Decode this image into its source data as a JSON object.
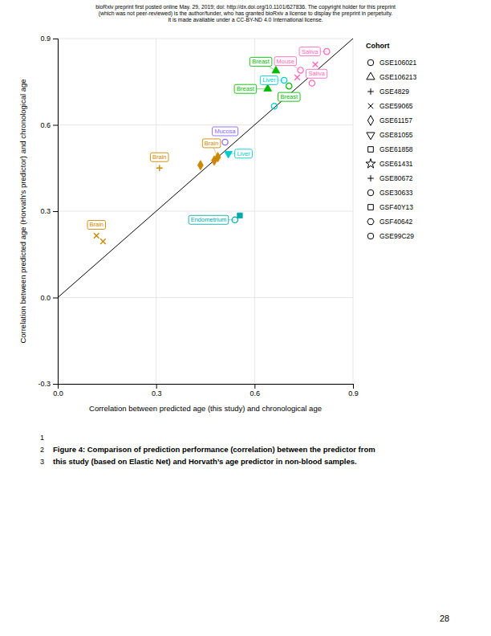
{
  "header_lines": [
    "bioRxiv preprint first posted online May. 29, 2019; doi: http://dx.doi.org/10.1101/627836. The copyright holder for this preprint",
    "(which was not peer-reviewed) is the author/funder, who has granted bioRxiv a license to display the preprint in perpetuity.",
    "It is made available under a CC-BY-ND 4.0 International license."
  ],
  "line_numbers": [
    "1",
    "2",
    "3"
  ],
  "caption_lines": [
    "Figure 4: Comparison of prediction performance (correlation) between the predictor from",
    "this study (based on Elastic Net) and Horvath’s age predictor in non-blood samples."
  ],
  "page_number": "28",
  "chart_data": {
    "type": "scatter",
    "xlabel": "Correlation between predicted age (this study) and chronological age",
    "ylabel": "Correlation between predicted age (Horvath's predictor) and chronological age",
    "xlim": [
      0,
      0.9
    ],
    "ylim": [
      -0.3,
      0.9
    ],
    "xticks": [
      {
        "value": 0,
        "label": "0.0"
      },
      0.3,
      0.6,
      0.9
    ],
    "yticks": [
      -0.3,
      {
        "value": 0,
        "label": "0.0"
      },
      0.3,
      0.6,
      0.9
    ],
    "grid": true,
    "reference_line": {
      "x": [
        -0.3,
        0.9
      ],
      "y": [
        -0.3,
        0.9
      ]
    },
    "series": [
      {
        "marker": "circle",
        "x": [
          0.82,
          0.74,
          0.775,
          0.69,
          0.705,
          0.66,
          0.51,
          0.54
        ],
        "values": [
          0.855,
          0.79,
          0.745,
          0.755,
          0.735,
          0.665,
          0.54,
          0.27
        ],
        "colors": [
          "#ff66bb",
          "#ff66bb",
          "#ff66bb",
          "#00cccc",
          "#00bb00",
          "#00cccc",
          "#8866ff",
          "#00aaaa"
        ],
        "labels": [
          "Saliva",
          "Mouse",
          "Saliva",
          "Liver",
          "Breast",
          null,
          "Mucosa",
          "Endometrium"
        ]
      },
      {
        "marker": "x",
        "x": [
          0.785,
          0.73,
          0.118,
          0.138
        ],
        "values": [
          0.81,
          0.765,
          0.215,
          0.195
        ],
        "colors": [
          "#ff66bb",
          "#ff66bb",
          "#cc8800",
          "#cc8800"
        ],
        "labels": [
          null,
          null,
          "Brain",
          null
        ]
      },
      {
        "marker": "triangle-up",
        "x": [
          0.665,
          0.64
        ],
        "values": [
          0.788,
          0.725
        ],
        "colors": [
          "#00bb00",
          "#00bb00"
        ],
        "labels": [
          "Breast",
          "Breast"
        ]
      },
      {
        "marker": "triangle-down",
        "x": [
          0.52
        ],
        "values": [
          0.5
        ],
        "colors": [
          "#00cccc"
        ],
        "labels": [
          "Liver"
        ]
      },
      {
        "marker": "diamond",
        "x": [
          0.488,
          0.477,
          0.435
        ],
        "values": [
          0.488,
          0.476,
          0.46
        ],
        "colors": [
          "#cc8800",
          "#cc8800",
          "#cc8800"
        ],
        "labels": [
          "Brain",
          null,
          null
        ]
      },
      {
        "marker": "square",
        "x": [
          0.555
        ],
        "values": [
          0.285
        ],
        "colors": [
          "#00aaaa"
        ],
        "labels": [
          null
        ]
      },
      {
        "marker": "plus",
        "x": [
          0.31
        ],
        "values": [
          0.45
        ],
        "colors": [
          "#cc8800"
        ],
        "labels": [
          "Brain"
        ]
      }
    ],
    "legend_title": "Cohort",
    "legend_entries": [
      {
        "name": "GSE106021",
        "marker": "circle"
      },
      {
        "name": "GSE106213",
        "marker": "triangle-up"
      },
      {
        "name": "GSE4829",
        "marker": "plus"
      },
      {
        "name": "GSE59065",
        "marker": "x"
      },
      {
        "name": "GSE61157",
        "marker": "diamond"
      },
      {
        "name": "GSE81055",
        "marker": "triangle-down"
      },
      {
        "name": "GSE61858",
        "marker": "square"
      },
      {
        "name": "GSE61431",
        "marker": "star"
      },
      {
        "name": "GSE80672",
        "marker": "plus"
      },
      {
        "name": "GSE30633",
        "marker": "circle"
      },
      {
        "name": "GSF40Y13",
        "marker": "square"
      },
      {
        "name": "GSF40642",
        "marker": "hexagon"
      },
      {
        "name": "GSE99C29",
        "marker": "circle"
      }
    ]
  }
}
